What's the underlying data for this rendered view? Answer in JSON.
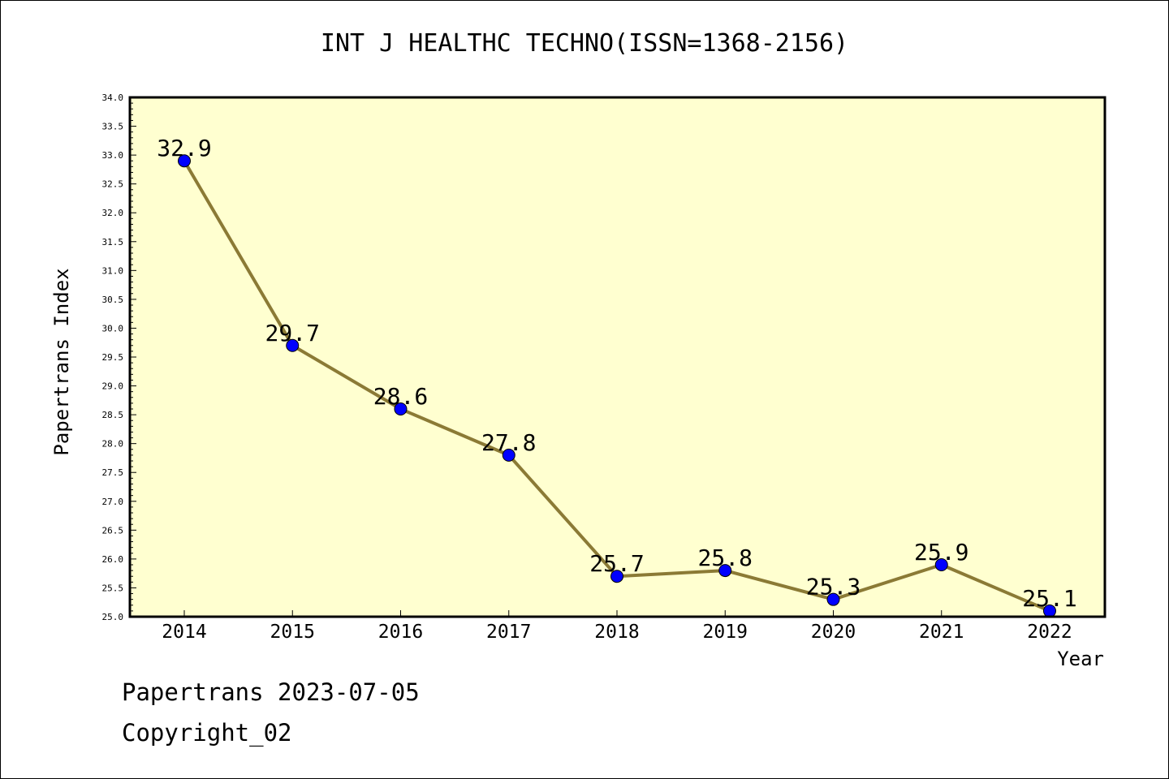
{
  "chart_data": {
    "type": "line",
    "title": "INT J HEALTHC TECHNO(ISSN=1368-2156)",
    "xlabel": "Year",
    "ylabel": "Papertrans Index",
    "categories": [
      "2014",
      "2015",
      "2016",
      "2017",
      "2018",
      "2019",
      "2020",
      "2021",
      "2022"
    ],
    "values": [
      32.9,
      29.7,
      28.6,
      27.8,
      25.7,
      25.8,
      25.3,
      25.9,
      25.1
    ],
    "data_labels": [
      "32.9",
      "29.7",
      "28.6",
      "27.8",
      "25.7",
      "25.8",
      "25.3",
      "25.9",
      "25.1"
    ],
    "ylim": [
      25.0,
      34.0
    ],
    "yticks": [
      "25.0",
      "25.5",
      "26.0",
      "26.5",
      "27.0",
      "27.5",
      "28.0",
      "28.5",
      "29.0",
      "29.5",
      "30.0",
      "30.5",
      "31.0",
      "31.5",
      "32.0",
      "32.5",
      "33.0",
      "33.5",
      "34.0"
    ],
    "colors": {
      "plot_bg": "#ffffd0",
      "line": "#8b7a35",
      "marker": "#0000ff"
    }
  },
  "footer": {
    "date_line": "Papertrans 2023-07-05",
    "copyright": "Copyright_02"
  }
}
